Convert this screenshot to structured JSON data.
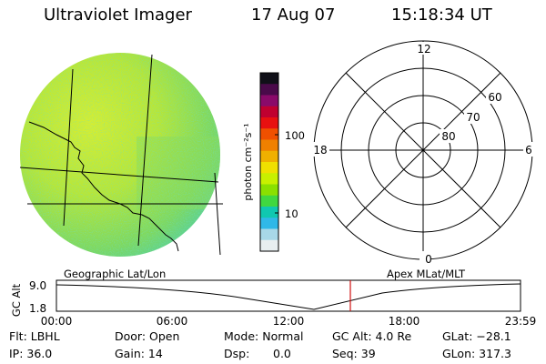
{
  "header": {
    "instrument": "Ultraviolet Imager",
    "date": "17 Aug 07",
    "time": "15:18:34 UT"
  },
  "colorbar": {
    "ticks": [
      "100",
      "10"
    ],
    "unit_label": "photon cm⁻²s⁻¹",
    "colors": [
      "#101018",
      "#4a0a4a",
      "#8a0a6a",
      "#c00030",
      "#e81010",
      "#f05000",
      "#f08000",
      "#f0b000",
      "#f0e000",
      "#c8f000",
      "#8ae000",
      "#40d840",
      "#10c8b0",
      "#30b8e8",
      "#a8d8e8",
      "#e8eef0"
    ]
  },
  "polar": {
    "labels": {
      "top": "12",
      "bottom": "0",
      "left": "18",
      "right": "6"
    },
    "rings": [
      "60",
      "70",
      "80"
    ]
  },
  "image_labels": {
    "left": "Geographic Lat/Lon",
    "right": "Apex MLat/MLT"
  },
  "altitude_plot": {
    "ylabel": "GC Alt",
    "yticks": [
      "9.0",
      "1.8"
    ],
    "xticks": [
      "00:00",
      "06:00",
      "12:00",
      "18:00",
      "23:59"
    ]
  },
  "status": {
    "flt": "Flt: LBHL",
    "ip": "IP: 36.0",
    "door": "Door: Open",
    "gain": "Gain: 14",
    "mode": "Mode: Normal",
    "dsp_label": "Dsp:",
    "dsp_value": "0.0",
    "gc_alt": "GC Alt: 4.0 Re",
    "seq": "Seq: 39",
    "glat": "GLat: −28.1",
    "glon": "GLon: 317.3"
  }
}
